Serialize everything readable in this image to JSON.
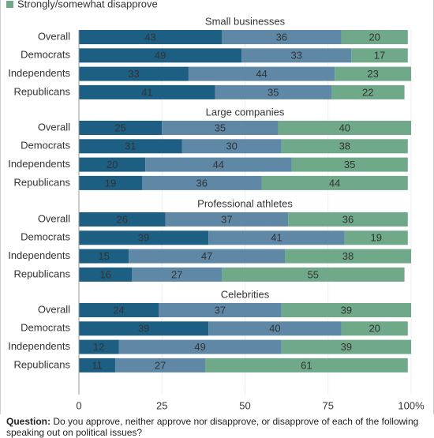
{
  "chart_data": {
    "type": "stacked-bar-horizontal",
    "series": [
      {
        "color": "#1d5f82"
      },
      {
        "color": "#5e88a6"
      },
      {
        "name": "Strongly/somewhat disapprove",
        "color": "#6fa98a"
      }
    ],
    "groups": [
      {
        "title": "Small businesses",
        "categories": [
          "Overall",
          "Democrats",
          "Independents",
          "Republicans"
        ],
        "values": [
          [
            43,
            49,
            33,
            41
          ],
          [
            36,
            33,
            44,
            35
          ],
          [
            20,
            17,
            23,
            22
          ]
        ]
      },
      {
        "title": "Large companies",
        "categories": [
          "Overall",
          "Democrats",
          "Independents",
          "Republicans"
        ],
        "values": [
          [
            25,
            31,
            20,
            19
          ],
          [
            35,
            30,
            44,
            36
          ],
          [
            40,
            38,
            35,
            44
          ]
        ]
      },
      {
        "title": "Professional athletes",
        "categories": [
          "Overall",
          "Democrats",
          "Independents",
          "Republicans"
        ],
        "values": [
          [
            26,
            39,
            15,
            16
          ],
          [
            37,
            41,
            47,
            27
          ],
          [
            36,
            19,
            38,
            55
          ]
        ]
      },
      {
        "title": "Celebrities",
        "categories": [
          "Overall",
          "Democrats",
          "Independents",
          "Republicans"
        ],
        "values": [
          [
            24,
            39,
            12,
            11
          ],
          [
            37,
            40,
            49,
            27
          ],
          [
            39,
            20,
            39,
            61
          ]
        ]
      }
    ],
    "xlim": [
      0,
      100
    ],
    "xticks": [
      0,
      25,
      50,
      75,
      {
        "value": 100,
        "label": "100%"
      }
    ],
    "grid": true,
    "note_label": "Question:",
    "note": "Do you approve, neither approve nor disapprove, or disapprove of each of the following speaking out on political issues?"
  }
}
